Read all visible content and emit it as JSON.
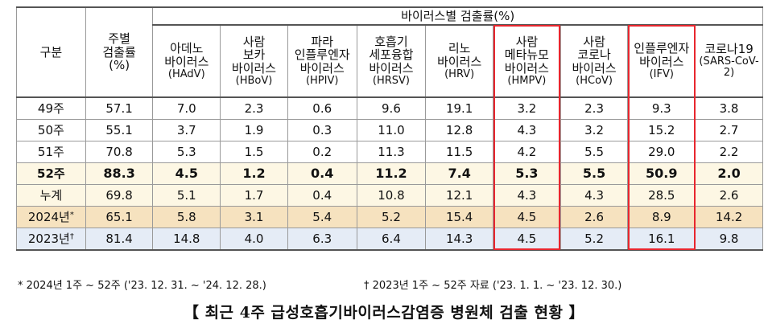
{
  "table": {
    "group_header": "바이러스별 검출률(%)",
    "col_gu": "구분",
    "col_weekly": [
      "주별",
      "검출률",
      "(%)"
    ],
    "viruses": [
      {
        "lines": [
          "아데노",
          "바이러스"
        ],
        "abbr": "(HAdV)"
      },
      {
        "lines": [
          "사람",
          "보카",
          "바이러스"
        ],
        "abbr": "(HBoV)"
      },
      {
        "lines": [
          "파라",
          "인플루엔자",
          "바이러스"
        ],
        "abbr": "(HPIV)"
      },
      {
        "lines": [
          "호흡기",
          "세포융합",
          "바이러스"
        ],
        "abbr": "(HRSV)"
      },
      {
        "lines": [
          "리노",
          "바이러스"
        ],
        "abbr": "(HRV)"
      },
      {
        "lines": [
          "사람",
          "메타뉴모",
          "바이러스"
        ],
        "abbr": "(HMPV)"
      },
      {
        "lines": [
          "사람",
          "코로나",
          "바이러스"
        ],
        "abbr": "(HCoV)"
      },
      {
        "lines": [
          "인플루엔자",
          "바이러스"
        ],
        "abbr": "(IFV)"
      },
      {
        "lines": [
          "코로나19"
        ],
        "abbr": "(SARS-CoV-2)"
      }
    ],
    "rows": [
      {
        "label": "49주",
        "mark": "",
        "values": [
          "57.1",
          "7.0",
          "2.3",
          "0.6",
          "9.6",
          "19.1",
          "3.2",
          "2.3",
          "9.3",
          "3.8"
        ]
      },
      {
        "label": "50주",
        "mark": "",
        "values": [
          "55.1",
          "3.7",
          "1.9",
          "0.3",
          "11.0",
          "12.8",
          "4.3",
          "3.2",
          "15.2",
          "2.7"
        ]
      },
      {
        "label": "51주",
        "mark": "",
        "values": [
          "70.8",
          "5.3",
          "1.5",
          "0.2",
          "11.3",
          "11.5",
          "4.2",
          "5.5",
          "29.0",
          "2.2"
        ]
      },
      {
        "label": "52주",
        "mark": "",
        "values": [
          "88.3",
          "4.5",
          "1.2",
          "0.4",
          "11.2",
          "7.4",
          "5.3",
          "5.5",
          "50.9",
          "2.0"
        ]
      },
      {
        "label": "누계",
        "mark": "",
        "values": [
          "69.8",
          "5.1",
          "1.7",
          "0.4",
          "10.8",
          "12.1",
          "4.3",
          "4.3",
          "28.5",
          "2.6"
        ]
      },
      {
        "label": "2024년",
        "mark": "*",
        "values": [
          "65.1",
          "5.8",
          "3.1",
          "5.4",
          "5.2",
          "15.4",
          "4.5",
          "2.6",
          "8.9",
          "14.2"
        ]
      },
      {
        "label": "2023년",
        "mark": "†",
        "values": [
          "81.4",
          "14.8",
          "4.0",
          "6.3",
          "6.4",
          "14.3",
          "4.5",
          "5.2",
          "16.1",
          "9.8"
        ]
      }
    ]
  },
  "footnotes": {
    "note1": "* 2024년 1주 ~ 52주 ('23. 12. 31. ~ '24. 12. 28.)",
    "note2": "† 2023년 1주 ~ 52주 자료 ('23. 1. 1. ~ '23. 12. 30.)"
  },
  "caption": "【 최근 4주 급성호흡기바이러스감염증 병원체 검출 현황 】",
  "colors": {
    "highlight_border": "#e8262e",
    "current_week_bg": "#fdf7e4",
    "year2024_bg": "#f6e2bf",
    "year2023_bg": "#e5ecf6"
  }
}
